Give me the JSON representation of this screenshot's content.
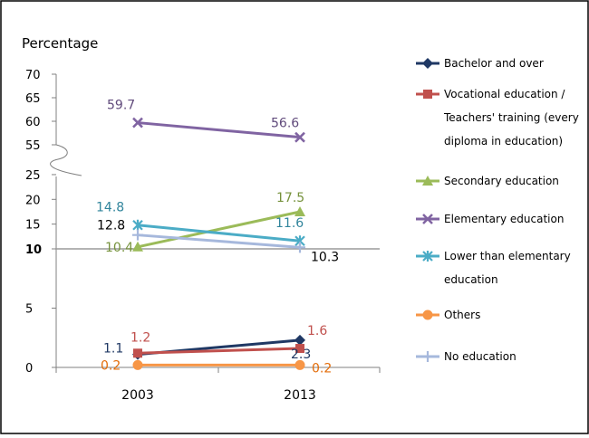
{
  "chart_data": {
    "type": "line",
    "ylabel": "Percentage",
    "categories": [
      "2003",
      "2013"
    ],
    "y_ticks_upper": [
      "70",
      "65",
      "60",
      "55"
    ],
    "y_ticks_lower": [
      "25",
      "20",
      "15",
      "10",
      "5",
      "0"
    ],
    "y_axis_break": {
      "from": 25,
      "to": 55
    },
    "grid": false,
    "legend_position": "right",
    "series": [
      {
        "name": "Bachelor and over",
        "values": [
          1.1,
          2.3
        ],
        "labels": [
          "1.1",
          "2.3"
        ],
        "color": "#1F3864",
        "marker": "diamond"
      },
      {
        "name": "Vocational education / Teachers' training (every diploma in education)",
        "name_lines": [
          "Vocational education /",
          "Teachers' training (every",
          "diploma in education)"
        ],
        "values": [
          1.2,
          1.6
        ],
        "labels": [
          "1.2",
          "1.6"
        ],
        "color": "#C0504D",
        "marker": "square"
      },
      {
        "name": "Secondary education",
        "values": [
          10.4,
          17.5
        ],
        "labels": [
          "10.4",
          "17.5"
        ],
        "color": "#9BBB59",
        "marker": "triangle"
      },
      {
        "name": "Elementary education",
        "values": [
          59.7,
          56.6
        ],
        "labels": [
          "59.7",
          "56.6"
        ],
        "color": "#8064A2",
        "marker": "x"
      },
      {
        "name": "Lower than elementary education",
        "name_lines": [
          "Lower than elementary",
          "education"
        ],
        "values": [
          14.8,
          11.6
        ],
        "labels": [
          "14.8",
          "11.6"
        ],
        "color": "#4BACC6",
        "marker": "star"
      },
      {
        "name": "Others",
        "values": [
          0.2,
          0.2
        ],
        "labels": [
          "0.2",
          "0.2"
        ],
        "color": "#F79646",
        "marker": "circle"
      },
      {
        "name": "No education",
        "values": [
          12.8,
          10.3
        ],
        "labels": [
          "12.8",
          "10.3"
        ],
        "color": "#A6B8DC",
        "marker": "plus"
      }
    ]
  }
}
